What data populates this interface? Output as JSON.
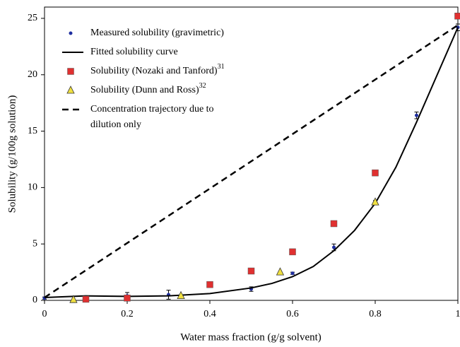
{
  "chart_data": {
    "type": "scatter",
    "x_label": "Water mass fraction (g/g solvent)",
    "y_label": "Solubility (g/100g solution)",
    "xlim": [
      0,
      1
    ],
    "ylim": [
      0,
      26
    ],
    "xticks": [
      0,
      0.2,
      0.4,
      0.6,
      0.8,
      1
    ],
    "yticks": [
      0,
      5,
      10,
      15,
      20,
      25
    ],
    "legend": "upper left",
    "series": [
      {
        "name": "Measured solubility (gravimetric)",
        "marker": "circle",
        "color": "#1f2fa0",
        "x": [
          0,
          0.1,
          0.2,
          0.3,
          0.5,
          0.6,
          0.7,
          0.8,
          0.9,
          1.0
        ],
        "values": [
          0.2,
          0.1,
          0.4,
          0.5,
          1.0,
          2.4,
          4.7,
          8.7,
          16.4,
          24.2
        ],
        "errors": [
          0.1,
          0.1,
          0.3,
          0.4,
          0.2,
          0.1,
          0.3,
          0.15,
          0.3,
          0.3
        ]
      },
      {
        "name": "Fitted solubility curve",
        "marker": "line",
        "color": "#000000",
        "x": [
          0,
          0.1,
          0.2,
          0.3,
          0.4,
          0.5,
          0.55,
          0.6,
          0.65,
          0.7,
          0.75,
          0.8,
          0.85,
          0.9,
          0.95,
          1.0
        ],
        "values": [
          0.25,
          0.4,
          0.35,
          0.4,
          0.6,
          1.1,
          1.5,
          2.1,
          3.0,
          4.4,
          6.2,
          8.6,
          11.8,
          15.8,
          20.0,
          24.2
        ]
      },
      {
        "name": "Solubility (Nozaki and Tanford)",
        "ref": "31",
        "marker": "square",
        "color": "#e03030",
        "x": [
          0.1,
          0.2,
          0.4,
          0.5,
          0.6,
          0.7,
          0.8,
          1.0
        ],
        "values": [
          0.1,
          0.2,
          1.4,
          2.6,
          4.3,
          6.8,
          11.3,
          25.2
        ]
      },
      {
        "name": "Solubility (Dunn and Ross)",
        "ref": "32",
        "marker": "triangle",
        "color": "#f0e040",
        "x": [
          0.07,
          0.33,
          0.57,
          0.8
        ],
        "values": [
          0.05,
          0.4,
          2.5,
          8.7
        ]
      },
      {
        "name": "Concentration trajectory due to dilution only",
        "marker": "dashed",
        "color": "#000000",
        "x": [
          0,
          1
        ],
        "values": [
          0.25,
          24.4
        ]
      }
    ]
  }
}
